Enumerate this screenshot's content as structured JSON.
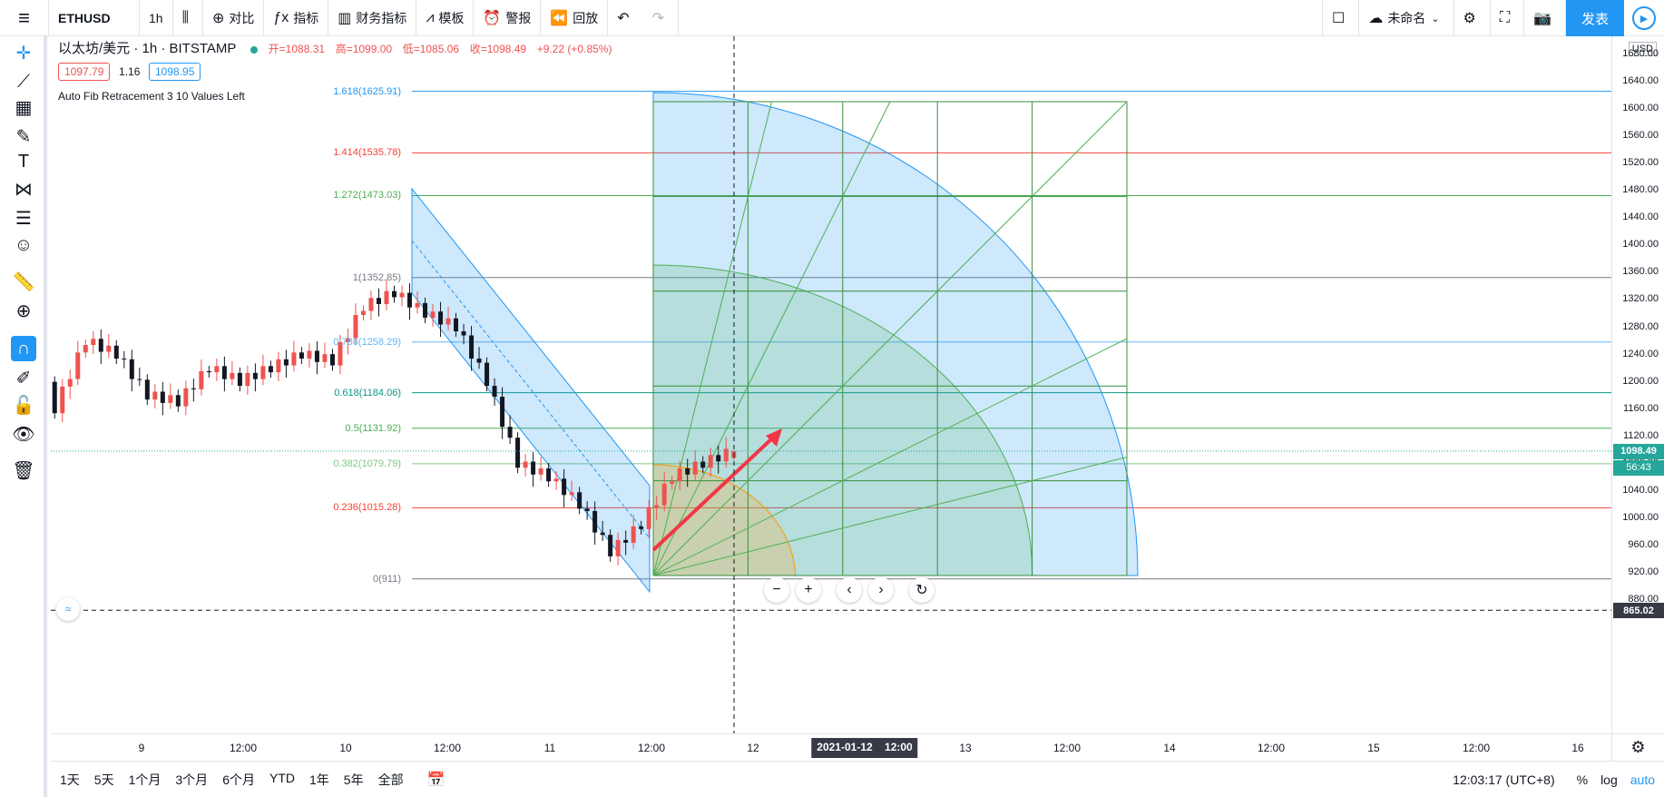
{
  "topbar": {
    "menu_icon": "menu-icon",
    "symbol": "ETHUSD",
    "interval": "1h",
    "compare": "对比",
    "indicators": "指标",
    "financials": "财务指标",
    "templates": "模板",
    "alerts": "警报",
    "replay": "回放",
    "layout_name": "未命名",
    "publish": "发表"
  },
  "legend": {
    "title": "以太坊/美元 · 1h · BITSTAMP",
    "open": "开=1088.31",
    "high": "高=1099.00",
    "low": "低=1085.06",
    "close": "收=1098.49",
    "change": "+9.22 (+0.85%)",
    "bid": "1097.79",
    "spread": "1.16",
    "ask": "1098.95",
    "fib_indicator": "Auto Fib Retracement 3 10 Values Left"
  },
  "fib_levels": [
    {
      "label": "1.618(1625.91)",
      "price": 1625.91,
      "color": "#2196f3"
    },
    {
      "label": "1.414(1535.78)",
      "price": 1535.78,
      "color": "#f44336"
    },
    {
      "label": "1.272(1473.03)",
      "price": 1473.03,
      "color": "#4caf50"
    },
    {
      "label": "1(1352.85)",
      "price": 1352.85,
      "color": "#787b86"
    },
    {
      "label": "0.786(1258.29)",
      "price": 1258.29,
      "color": "#64b5f6"
    },
    {
      "label": "0.618(1184.06)",
      "price": 1184.06,
      "color": "#089981"
    },
    {
      "label": "0.5(1131.92)",
      "price": 1131.92,
      "color": "#4caf50"
    },
    {
      "label": "0.382(1079.79)",
      "price": 1079.79,
      "color": "#81c784"
    },
    {
      "label": "0.236(1015.28)",
      "price": 1015.28,
      "color": "#f44336"
    },
    {
      "label": "0(911)",
      "price": 911,
      "color": "#787b86"
    }
  ],
  "price_axis": {
    "currency": "USD",
    "ticks": [
      "1680.00",
      "1640.00",
      "1600.00",
      "1560.00",
      "1520.00",
      "1480.00",
      "1440.00",
      "1400.00",
      "1360.00",
      "1320.00",
      "1280.00",
      "1240.00",
      "1200.00",
      "1160.00",
      "1120.00",
      "1080.00",
      "1040.00",
      "1000.00",
      "960.00",
      "920.00",
      "880.00"
    ],
    "last_price": "1098.49",
    "countdown": "56:43",
    "cursor_price": "865.02"
  },
  "time_axis": {
    "ticks": [
      "9",
      "12:00",
      "10",
      "12:00",
      "11",
      "12:00",
      "12",
      "13",
      "12:00",
      "14",
      "12:00",
      "15",
      "12:00",
      "16"
    ],
    "cursor_date": "2021-01-12",
    "cursor_time": "12:00"
  },
  "bottombar": {
    "ranges": [
      "1天",
      "5天",
      "1个月",
      "3个月",
      "6个月",
      "YTD",
      "1年",
      "5年",
      "全部"
    ],
    "clock": "12:03:17 (UTC+8)",
    "percent": "%",
    "log": "log",
    "auto": "auto"
  },
  "colors": {
    "up": "#ef5350",
    "down": "#131722",
    "accent": "#2196f3"
  },
  "chart_data": {
    "type": "candlestick",
    "title": "以太坊/美元 · 1h · BITSTAMP",
    "ylim": [
      865,
      1690
    ],
    "series": [
      {
        "name": "ETHUSD",
        "ohlc_sample": [
          [
            1200,
            1230,
            1120,
            1160
          ],
          [
            1160,
            1280,
            1150,
            1260
          ],
          [
            1260,
            1280,
            1220,
            1240
          ],
          [
            1240,
            1260,
            1170,
            1180
          ],
          [
            1180,
            1190,
            1140,
            1170
          ],
          [
            1170,
            1230,
            1160,
            1220
          ],
          [
            1220,
            1240,
            1180,
            1200
          ],
          [
            1200,
            1230,
            1190,
            1220
          ],
          [
            1220,
            1260,
            1210,
            1240
          ],
          [
            1240,
            1250,
            1210,
            1230
          ],
          [
            1230,
            1320,
            1220,
            1310
          ],
          [
            1310,
            1350,
            1300,
            1330
          ],
          [
            1330,
            1340,
            1290,
            1300
          ],
          [
            1300,
            1330,
            1250,
            1280
          ],
          [
            1280,
            1300,
            1170,
            1200
          ],
          [
            1200,
            1230,
            1050,
            1080
          ],
          [
            1080,
            1150,
            1010,
            1060
          ],
          [
            1060,
            1110,
            1000,
            1020
          ],
          [
            1020,
            1060,
            930,
            950
          ],
          [
            950,
            1000,
            940,
            990
          ],
          [
            990,
            1070,
            980,
            1060
          ],
          [
            1060,
            1090,
            1030,
            1080
          ],
          [
            1088.31,
            1099.0,
            1085.06,
            1098.49
          ]
        ]
      }
    ]
  }
}
